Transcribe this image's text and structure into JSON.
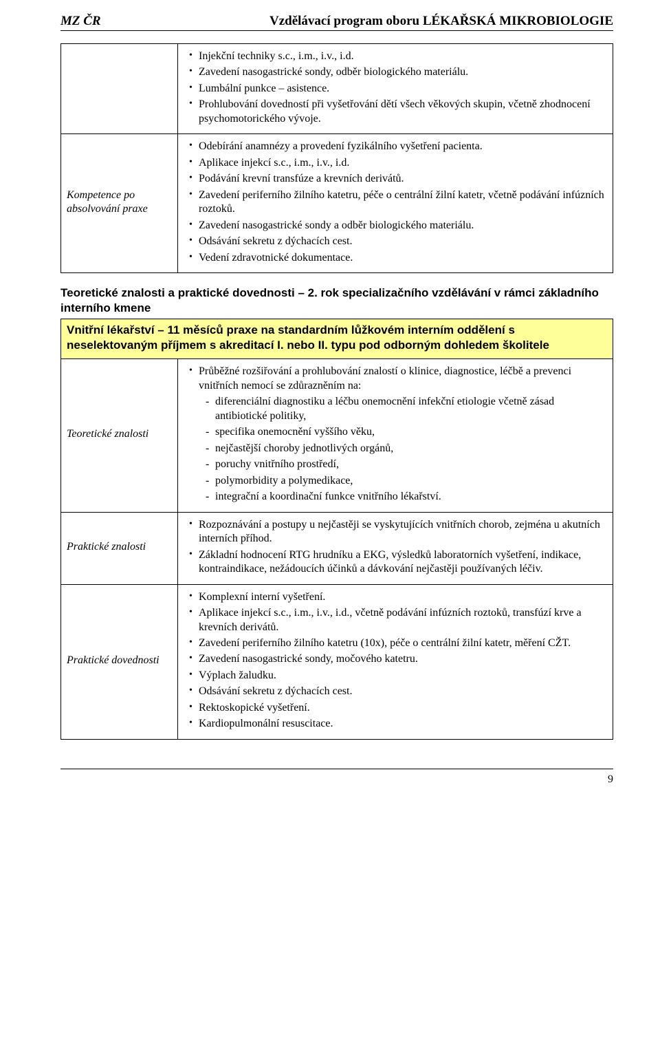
{
  "header": {
    "left": "MZ ČR",
    "right": "Vzdělávací program oboru LÉKAŘSKÁ MIKROBIOLOGIE"
  },
  "table1": {
    "row1_label_empty": "",
    "row1_items": [
      "Injekční techniky s.c., i.m., i.v., i.d.",
      "Zavedení nasogastrické sondy, odběr biologického materiálu.",
      "Lumbální punkce – asistence.",
      "Prohlubování dovedností při vyšetřování dětí všech věkových skupin, včetně zhodnocení psychomotorického vývoje."
    ],
    "row2_label": "Kompetence po absolvování praxe",
    "row2_items": [
      "Odebírání anamnézy a provedení fyzikálního vyšetření pacienta.",
      "Aplikace injekcí s.c., i.m., i.v., i.d.",
      "Podávání krevní transfúze a krevních derivátů.",
      "Zavedení periferního žilního katetru, péče o centrální žilní katetr, včetně podávání infúzních roztoků.",
      "Zavedení nasogastrické sondy a odběr biologického materiálu.",
      "Odsávání sekretu z dýchacích cest.",
      "Vedení zdravotnické dokumentace."
    ]
  },
  "section_heading": "Teoretické znalosti a praktické dovednosti – 2. rok specializačního vzdělávání v rámci základního interního kmene",
  "table2": {
    "yellow_heading": "Vnitřní lékařství – 11 měsíců praxe na standardním lůžkovém interním oddělení s neselektovaným příjmem s akreditací I. nebo II. typu pod odborným dohledem školitele",
    "row1_label": "Teoretické znalosti",
    "row1_intro": "Průběžné rozšiřování a prohlubování znalostí o klinice, diagnostice, léčbě a prevenci vnitřních nemocí se zdůrazněním na:",
    "row1_sub": [
      "diferenciální diagnostiku a léčbu onemocnění infekční etiologie včetně zásad antibiotické politiky,",
      "specifika onemocnění vyššího věku,",
      "nejčastější choroby jednotlivých orgánů,",
      "poruchy vnitřního prostředí,",
      "polymorbidity a polymedikace,",
      "integrační a koordinační funkce vnitřního lékařství."
    ],
    "row2_label": "Praktické znalosti",
    "row2_items": [
      "Rozpoznávání a postupy u nejčastěji se vyskytujících vnitřních chorob, zejména u akutních interních příhod.",
      "Základní hodnocení RTG hrudníku a EKG, výsledků laboratorních vyšetření, indikace, kontraindikace, nežádoucích účinků a dávkování nejčastěji používaných léčiv."
    ],
    "row3_label": "Praktické dovednosti",
    "row3_items": [
      "Komplexní interní vyšetření.",
      "Aplikace injekcí s.c., i.m., i.v., i.d., včetně podávání infúzních roztoků, transfúzí krve a krevních derivátů.",
      "Zavedení periferního žilního katetru (10x), péče o centrální žilní katetr, měření CŽT.",
      "Zavedení nasogastrické sondy, močového katetru.",
      "Výplach žaludku.",
      "Odsávání sekretu z dýchacích cest.",
      "Rektoskopické vyšetření.",
      "Kardiopulmonální resuscitace."
    ]
  },
  "page_number": "9"
}
